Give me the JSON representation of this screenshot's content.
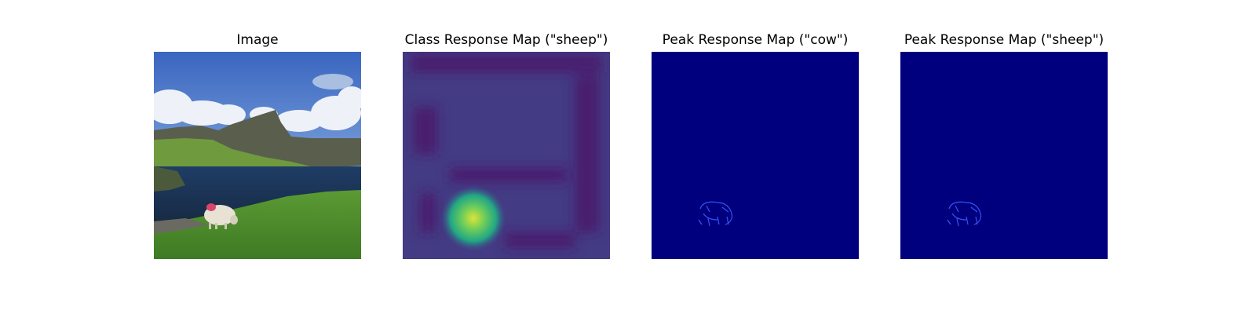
{
  "figure": {
    "panels": [
      {
        "title": "Image",
        "content": "photo"
      },
      {
        "title": "Class Response Map (\"sheep\")",
        "content": "class-response-map"
      },
      {
        "title": "Peak Response Map (\"cow\")",
        "content": "peak-response-map"
      },
      {
        "title": "Peak Response Map (\"sheep\")",
        "content": "peak-response-map"
      }
    ]
  },
  "colors": {
    "sky": "#3f6fc6",
    "grass": "#4f8a2e",
    "water": "#1e3a5e",
    "viridis_dark": "#440154",
    "viridis_mid": "#3b528b",
    "viridis_peak": "#d9e33a",
    "jet_background": "#00007f",
    "jet_highlight": "#4f6cff"
  }
}
